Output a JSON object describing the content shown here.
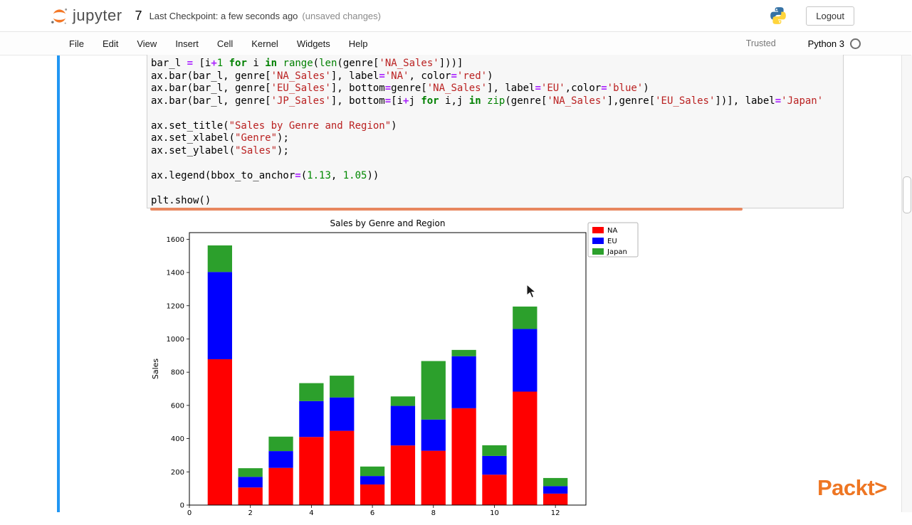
{
  "header": {
    "logo_text": "jupyter",
    "notebook_title": "7",
    "checkpoint": "Last Checkpoint: a few seconds ago",
    "unsaved": "(unsaved changes)",
    "logout_label": "Logout"
  },
  "menubar": {
    "items": [
      "File",
      "Edit",
      "View",
      "Insert",
      "Cell",
      "Kernel",
      "Widgets",
      "Help"
    ],
    "trusted_label": "Trusted",
    "kernel_name": "Python 3"
  },
  "code": {
    "lines": [
      [
        [
          "v",
          "bar_l "
        ],
        [
          "o",
          "="
        ],
        [
          "v",
          " [i"
        ],
        [
          "o",
          "+"
        ],
        [
          "n",
          "1"
        ],
        [
          "v",
          " "
        ],
        [
          "k",
          "for"
        ],
        [
          "v",
          " i "
        ],
        [
          "k",
          "in"
        ],
        [
          "v",
          " "
        ],
        [
          "b",
          "range"
        ],
        [
          "v",
          "("
        ],
        [
          "b",
          "len"
        ],
        [
          "v",
          "(genre["
        ],
        [
          "s",
          "'NA_Sales'"
        ],
        [
          "v",
          "]))]"
        ]
      ],
      [
        [
          "v",
          "ax.bar(bar_l, genre["
        ],
        [
          "s",
          "'NA_Sales'"
        ],
        [
          "v",
          "], label"
        ],
        [
          "o",
          "="
        ],
        [
          "s",
          "'NA'"
        ],
        [
          "v",
          ", color"
        ],
        [
          "o",
          "="
        ],
        [
          "s",
          "'red'"
        ],
        [
          "v",
          ")"
        ]
      ],
      [
        [
          "v",
          "ax.bar(bar_l, genre["
        ],
        [
          "s",
          "'EU_Sales'"
        ],
        [
          "v",
          "], bottom"
        ],
        [
          "o",
          "="
        ],
        [
          "v",
          "genre["
        ],
        [
          "s",
          "'NA_Sales'"
        ],
        [
          "v",
          "], label"
        ],
        [
          "o",
          "="
        ],
        [
          "s",
          "'EU'"
        ],
        [
          "v",
          ",color"
        ],
        [
          "o",
          "="
        ],
        [
          "s",
          "'blue'"
        ],
        [
          "v",
          ")"
        ]
      ],
      [
        [
          "v",
          "ax.bar(bar_l, genre["
        ],
        [
          "s",
          "'JP_Sales'"
        ],
        [
          "v",
          "], bottom"
        ],
        [
          "o",
          "="
        ],
        [
          "v",
          "[i"
        ],
        [
          "o",
          "+"
        ],
        [
          "v",
          "j "
        ],
        [
          "k",
          "for"
        ],
        [
          "v",
          " i,j "
        ],
        [
          "k",
          "in"
        ],
        [
          "v",
          " "
        ],
        [
          "b",
          "zip"
        ],
        [
          "v",
          "(genre["
        ],
        [
          "s",
          "'NA_Sales'"
        ],
        [
          "v",
          "],genre["
        ],
        [
          "s",
          "'EU_Sales'"
        ],
        [
          "v",
          "])], label"
        ],
        [
          "o",
          "="
        ],
        [
          "s",
          "'Japan'"
        ]
      ],
      [],
      [
        [
          "v",
          "ax.set_title("
        ],
        [
          "s",
          "\"Sales by Genre and Region\""
        ],
        [
          "v",
          ")"
        ]
      ],
      [
        [
          "v",
          "ax.set_xlabel("
        ],
        [
          "s",
          "\"Genre\""
        ],
        [
          "v",
          ");"
        ]
      ],
      [
        [
          "v",
          "ax.set_ylabel("
        ],
        [
          "s",
          "\"Sales\""
        ],
        [
          "v",
          ");"
        ]
      ],
      [],
      [
        [
          "v",
          "ax.legend(bbox_to_anchor"
        ],
        [
          "o",
          "="
        ],
        [
          "v",
          "("
        ],
        [
          "n",
          "1.13"
        ],
        [
          "v",
          ", "
        ],
        [
          "n",
          "1.05"
        ],
        [
          "v",
          "))"
        ]
      ],
      [],
      [
        [
          "v",
          "plt.show()"
        ]
      ]
    ]
  },
  "chart_data": {
    "type": "bar",
    "stacked": true,
    "title": "Sales by Genre and Region",
    "ylabel": "Sales",
    "x": [
      1,
      2,
      3,
      4,
      5,
      6,
      7,
      8,
      9,
      10,
      11,
      12
    ],
    "series": [
      {
        "name": "NA",
        "color": "#ff0000",
        "values": [
          878,
          106,
          224,
          410,
          447,
          124,
          359,
          327,
          583,
          183,
          683,
          69
        ]
      },
      {
        "name": "EU",
        "color": "#0000ff",
        "values": [
          525,
          64,
          101,
          216,
          201,
          51,
          238,
          188,
          313,
          113,
          377,
          45
        ]
      },
      {
        "name": "Japan",
        "color": "#2ca02c",
        "values": [
          160,
          52,
          87,
          108,
          131,
          57,
          57,
          352,
          38,
          64,
          135,
          49
        ]
      }
    ],
    "ylim": [
      0,
      1640
    ],
    "xlim": [
      0,
      13
    ],
    "yticks": [
      0,
      200,
      400,
      600,
      800,
      1000,
      1200,
      1400,
      1600
    ],
    "xticks": [
      0,
      2,
      4,
      6,
      8,
      10,
      12
    ],
    "legend_position": "outside-top-right",
    "grid": false
  },
  "watermark": "Packt>"
}
